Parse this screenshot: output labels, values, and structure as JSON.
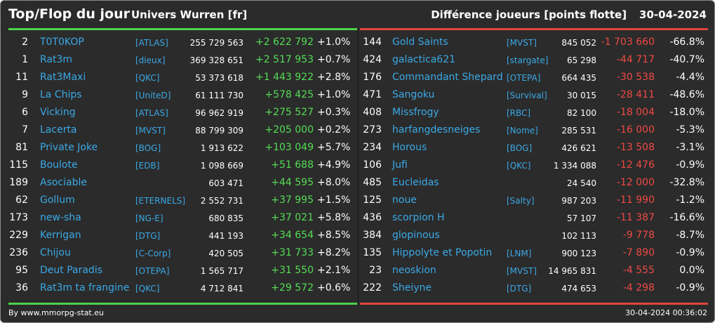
{
  "header": {
    "title": "Top/Flop du jour",
    "subtitle": "Univers Wurren [fr]",
    "metric": "Différence joueurs [points flotte]",
    "date": "30-04-2024"
  },
  "colors": {
    "background": "#2b2b2b",
    "link": "#3ba9e6",
    "positive": "#55dd55",
    "negative": "#ee4a44",
    "top_bar": "#4ad34a",
    "flop_bar": "#e0453d"
  },
  "top": [
    {
      "rank": "2",
      "name": "T0T0KOP",
      "guild": "[ATLAS]",
      "score": "255 729 563",
      "diff": "+2 622 792",
      "pct": "+1.0%"
    },
    {
      "rank": "1",
      "name": "Rat3m",
      "guild": "[dieux]",
      "score": "369 328 651",
      "diff": "+2 517 953",
      "pct": "+0.7%"
    },
    {
      "rank": "11",
      "name": "Rat3Maxi",
      "guild": "[QKC]",
      "score": "53 373 618",
      "diff": "+1 443 922",
      "pct": "+2.8%"
    },
    {
      "rank": "9",
      "name": "La Chips",
      "guild": "[UniteD]",
      "score": "61 111 730",
      "diff": "+578 425",
      "pct": "+1.0%"
    },
    {
      "rank": "6",
      "name": "Vicking",
      "guild": "[ATLAS]",
      "score": "96 962 919",
      "diff": "+275 527",
      "pct": "+0.3%"
    },
    {
      "rank": "7",
      "name": "Lacerta",
      "guild": "[MVST]",
      "score": "88 799 309",
      "diff": "+205 000",
      "pct": "+0.2%"
    },
    {
      "rank": "81",
      "name": "Private Joke",
      "guild": "[BOG]",
      "score": "1 913 622",
      "diff": "+103 049",
      "pct": "+5.7%"
    },
    {
      "rank": "115",
      "name": "Boulote",
      "guild": "[EDB]",
      "score": "1 098 669",
      "diff": "+51 688",
      "pct": "+4.9%"
    },
    {
      "rank": "189",
      "name": "Asociable",
      "guild": "",
      "score": "603 471",
      "diff": "+44 595",
      "pct": "+8.0%"
    },
    {
      "rank": "62",
      "name": "Gollum",
      "guild": "[ETERNELS]",
      "score": "2 552 731",
      "diff": "+37 995",
      "pct": "+1.5%"
    },
    {
      "rank": "173",
      "name": "new-sha",
      "guild": "[NG-E]",
      "score": "680 835",
      "diff": "+37 021",
      "pct": "+5.8%"
    },
    {
      "rank": "229",
      "name": "Kerrigan",
      "guild": "[DTG]",
      "score": "441 193",
      "diff": "+34 654",
      "pct": "+8.5%"
    },
    {
      "rank": "236",
      "name": "Chijou",
      "guild": "[C-Corp]",
      "score": "420 505",
      "diff": "+31 733",
      "pct": "+8.2%"
    },
    {
      "rank": "95",
      "name": "Deut Paradis",
      "guild": "[OTEPA]",
      "score": "1 565 717",
      "diff": "+31 550",
      "pct": "+2.1%"
    },
    {
      "rank": "36",
      "name": "Rat3m ta frangine",
      "guild": "[QKC]",
      "score": "4 712 841",
      "diff": "+29 572",
      "pct": "+0.6%"
    }
  ],
  "flop": [
    {
      "rank": "144",
      "name": "Gold Saints",
      "guild": "[MVST]",
      "score": "845 052",
      "diff": "-1 703 660",
      "pct": "-66.8%"
    },
    {
      "rank": "424",
      "name": "galactica621",
      "guild": "[stargate]",
      "score": "65 298",
      "diff": "-44 717",
      "pct": "-40.7%"
    },
    {
      "rank": "176",
      "name": "Commandant Shepard",
      "guild": "[OTEPA]",
      "score": "664 435",
      "diff": "-30 538",
      "pct": "-4.4%"
    },
    {
      "rank": "471",
      "name": "Sangoku",
      "guild": "[Survival]",
      "score": "30 015",
      "diff": "-28 411",
      "pct": "-48.6%"
    },
    {
      "rank": "408",
      "name": "Missfrogy",
      "guild": "[RBC]",
      "score": "82 100",
      "diff": "-18 004",
      "pct": "-18.0%"
    },
    {
      "rank": "273",
      "name": "harfangdesneiges",
      "guild": "[Nome]",
      "score": "285 531",
      "diff": "-16 000",
      "pct": "-5.3%"
    },
    {
      "rank": "234",
      "name": "Horous",
      "guild": "[BOG]",
      "score": "426 621",
      "diff": "-13 508",
      "pct": "-3.1%"
    },
    {
      "rank": "106",
      "name": "Jufi",
      "guild": "[QKC]",
      "score": "1 334 088",
      "diff": "-12 476",
      "pct": "-0.9%"
    },
    {
      "rank": "485",
      "name": "Eucleidas",
      "guild": "",
      "score": "24 540",
      "diff": "-12 000",
      "pct": "-32.8%"
    },
    {
      "rank": "125",
      "name": "noue",
      "guild": "[Salty]",
      "score": "987 203",
      "diff": "-11 990",
      "pct": "-1.2%"
    },
    {
      "rank": "436",
      "name": "scorpion H",
      "guild": "",
      "score": "57 107",
      "diff": "-11 387",
      "pct": "-16.6%"
    },
    {
      "rank": "384",
      "name": "glopinous",
      "guild": "",
      "score": "102 113",
      "diff": "-9 778",
      "pct": "-8.7%"
    },
    {
      "rank": "135",
      "name": "Hippolyte et Popotin",
      "guild": "[LNM]",
      "score": "900 123",
      "diff": "-7 890",
      "pct": "-0.9%"
    },
    {
      "rank": "23",
      "name": "neoskion",
      "guild": "[MVST]",
      "score": "14 965 831",
      "diff": "-4 555",
      "pct": "0.0%"
    },
    {
      "rank": "222",
      "name": "Sheiyne",
      "guild": "[DTG]",
      "score": "474 653",
      "diff": "-4 298",
      "pct": "-0.9%"
    }
  ],
  "footer": {
    "credit": "By www.mmorpg-stat.eu",
    "timestamp": "30-04-2024 00:36:02"
  }
}
